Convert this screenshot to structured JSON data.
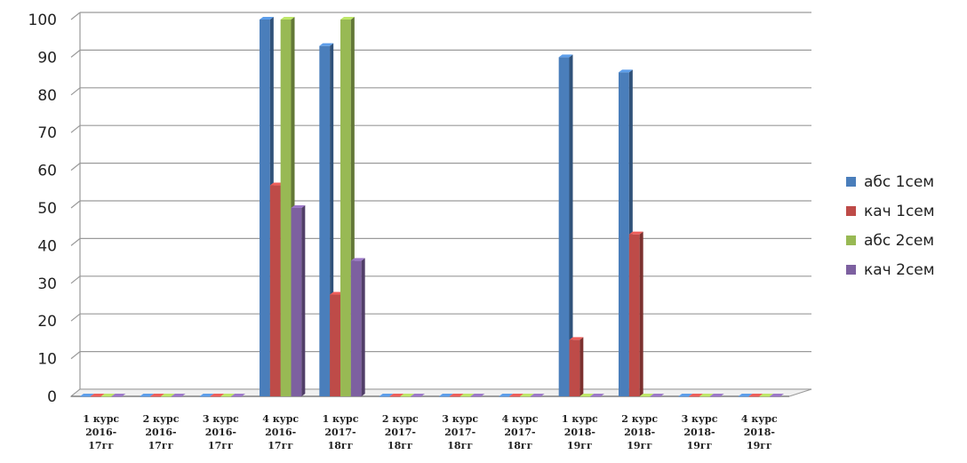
{
  "chart_data": {
    "type": "bar",
    "title": "",
    "xlabel": "",
    "ylabel": "",
    "ylim": [
      0,
      100
    ],
    "yticks": [
      0,
      10,
      20,
      30,
      40,
      50,
      60,
      70,
      80,
      90,
      100
    ],
    "grid": true,
    "legend_position": "right",
    "categories": [
      [
        "1 курс",
        "2016-",
        "17гг"
      ],
      [
        "2 курс",
        "2016-",
        "17гг"
      ],
      [
        "3 курс",
        "2016-",
        "17гг"
      ],
      [
        "4 курс",
        "2016-",
        "17гг"
      ],
      [
        "1 курс",
        "2017-",
        "18гг"
      ],
      [
        "2 курс",
        "2017-",
        "18гг"
      ],
      [
        "3 курс",
        "2017-",
        "18гг"
      ],
      [
        "4 курс",
        "2017-",
        "18гг"
      ],
      [
        "1 курс",
        "2018-",
        "19гг"
      ],
      [
        "2 курс",
        "2018-",
        "19гг"
      ],
      [
        "3 курс",
        "2018-",
        "19гг"
      ],
      [
        "4 курс",
        "2018-",
        "19гг"
      ]
    ],
    "series": [
      {
        "name": "абс 1сем",
        "color": "#4a7ebb",
        "values": [
          0,
          0,
          0,
          100,
          93,
          0,
          0,
          0,
          90,
          86,
          0,
          0
        ]
      },
      {
        "name": "кач 1сем",
        "color": "#be4b48",
        "values": [
          0,
          0,
          0,
          56,
          27,
          0,
          0,
          0,
          15,
          43,
          0,
          0
        ]
      },
      {
        "name": "абс 2сем",
        "color": "#98b954",
        "values": [
          0,
          0,
          0,
          100,
          100,
          0,
          0,
          0,
          0,
          0,
          0,
          0
        ]
      },
      {
        "name": "кач 2сем",
        "color": "#7d60a0",
        "values": [
          0,
          0,
          0,
          50,
          36,
          0,
          0,
          0,
          0,
          0,
          0,
          0
        ]
      }
    ]
  }
}
